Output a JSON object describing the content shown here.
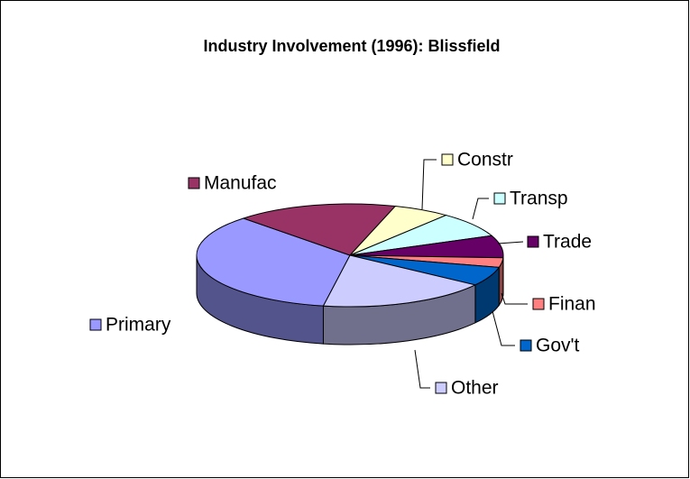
{
  "chart_data": {
    "type": "pie3d",
    "title": "Industry Involvement (1996): Blissfield",
    "categories": [
      "Primary",
      "Manufac",
      "Constr",
      "Transp",
      "Trade",
      "Finan",
      "Gov't",
      "Other"
    ],
    "values": [
      35,
      17,
      6,
      8,
      7,
      3,
      6,
      18
    ],
    "colors": [
      "#9999FF",
      "#993366",
      "#FFFFCC",
      "#CCFFFF",
      "#660066",
      "#FF8080",
      "#0066CC",
      "#CCCCFF"
    ]
  }
}
